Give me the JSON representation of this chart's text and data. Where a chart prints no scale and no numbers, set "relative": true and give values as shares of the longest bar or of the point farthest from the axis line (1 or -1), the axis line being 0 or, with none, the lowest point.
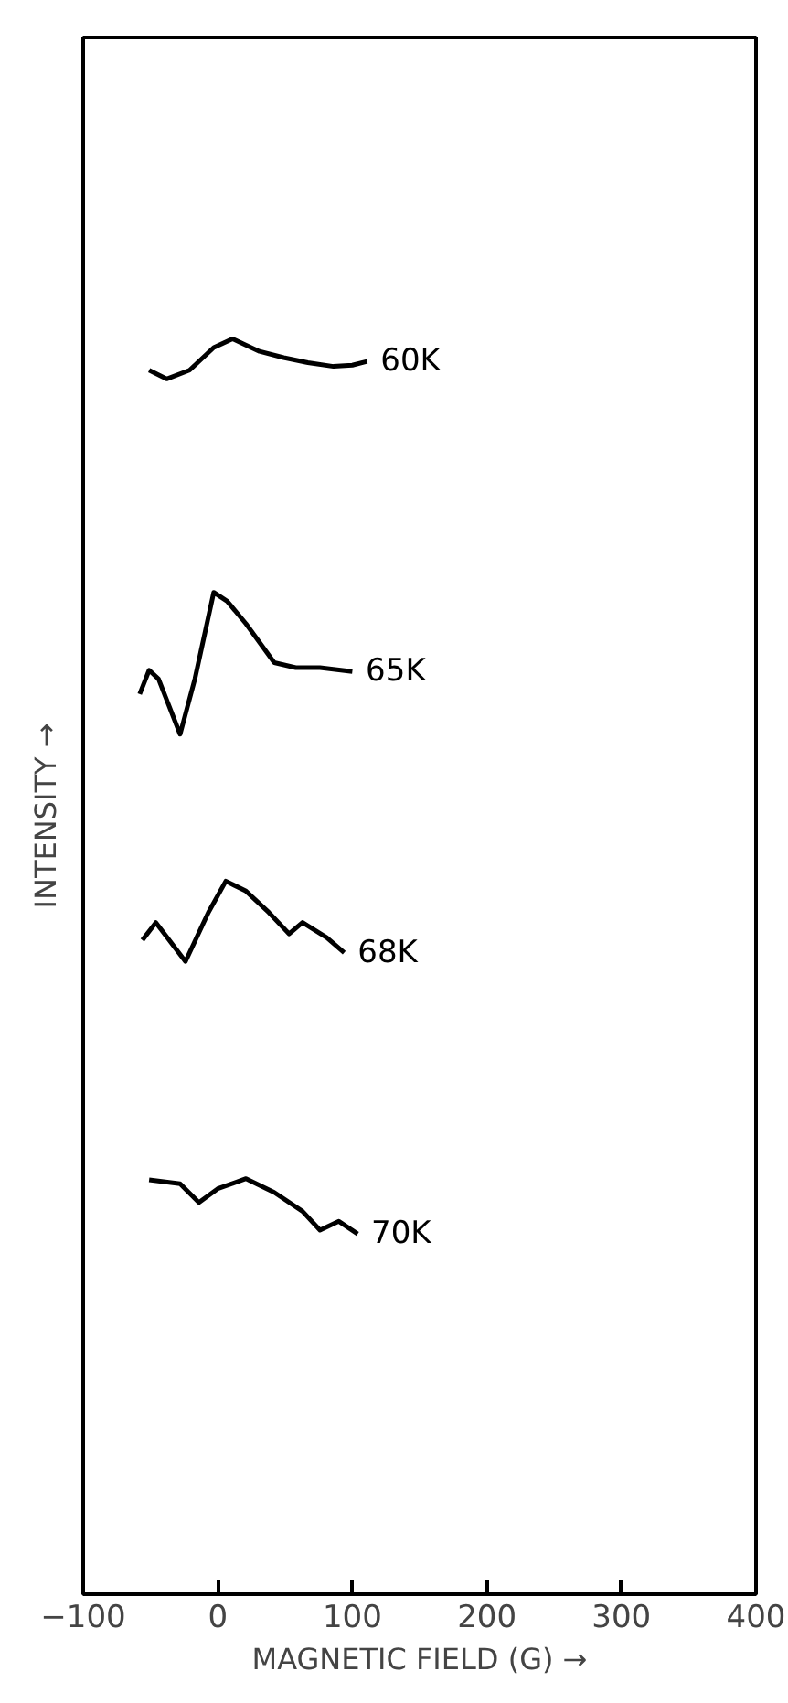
{
  "chart_data": {
    "type": "line",
    "relative": true,
    "xlabel": "MAGNETIC FIELD (G) →",
    "ylabel": "INTENSITY →",
    "xlim": [
      -100,
      400
    ],
    "xticks": [
      -100,
      0,
      100,
      200,
      300,
      400
    ],
    "grid": false,
    "legend": false,
    "marker": "none",
    "line_style": "solid",
    "series": [
      {
        "name": "60K",
        "color": "#000000",
        "x": [
          -51,
          -38,
          -21,
          -3,
          11,
          31,
          49,
          67,
          86,
          100,
          111
        ],
        "values": [
          0.975,
          0.968,
          0.975,
          0.993,
          1,
          0.99,
          0.985,
          0.981,
          0.978,
          0.979,
          0.982
        ]
      },
      {
        "name": "65K",
        "color": "#000000",
        "x": [
          -58,
          -51,
          -44,
          -28,
          -17,
          -3,
          7,
          21,
          42,
          58,
          76,
          100
        ],
        "values": [
          0.717,
          0.736,
          0.729,
          0.685,
          0.729,
          0.798,
          0.791,
          0.773,
          0.742,
          0.738,
          0.738,
          0.735
        ]
      },
      {
        "name": "68K",
        "color": "#000000",
        "x": [
          -56,
          -46,
          -24,
          -7,
          6,
          21,
          38,
          53,
          63,
          81,
          94
        ],
        "values": [
          0.521,
          0.535,
          0.504,
          0.543,
          0.568,
          0.56,
          0.543,
          0.526,
          0.535,
          0.523,
          0.511
        ]
      },
      {
        "name": "70K",
        "color": "#000000",
        "x": [
          -51,
          -28,
          -14,
          0,
          21,
          42,
          63,
          76,
          90,
          104
        ],
        "values": [
          0.33,
          0.327,
          0.312,
          0.323,
          0.331,
          0.32,
          0.305,
          0.29,
          0.297,
          0.287
        ]
      }
    ]
  }
}
